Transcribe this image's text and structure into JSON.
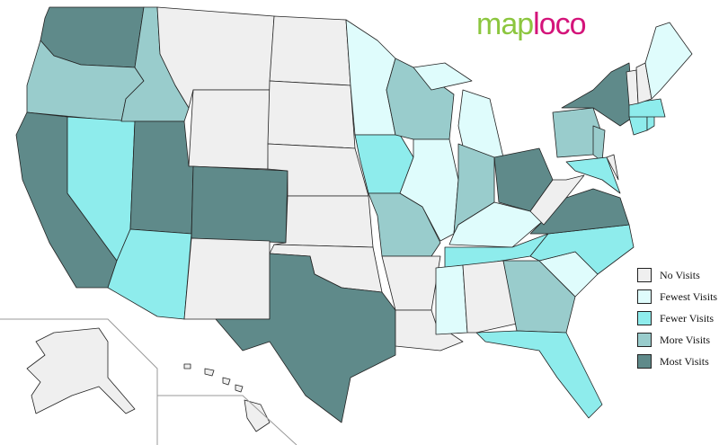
{
  "logo": {
    "part1": "map",
    "part2": "loco"
  },
  "colors": {
    "none": "#efefef",
    "fewest": "#dffcfc",
    "fewer": "#8eecec",
    "more": "#99cccc",
    "most": "#5f8a8a"
  },
  "legend": [
    {
      "key": "none",
      "label": "No Visits"
    },
    {
      "key": "fewest",
      "label": "Fewest Visits"
    },
    {
      "key": "fewer",
      "label": "Fewer Visits"
    },
    {
      "key": "more",
      "label": "More Visits"
    },
    {
      "key": "most",
      "label": "Most Visits"
    }
  ],
  "states": {
    "WA": "most",
    "OR": "more",
    "CA": "most",
    "NV": "fewer",
    "ID": "more",
    "MT": "none",
    "WY": "none",
    "UT": "most",
    "CO": "most",
    "AZ": "fewer",
    "NM": "none",
    "ND": "none",
    "SD": "none",
    "NE": "none",
    "KS": "none",
    "OK": "none",
    "TX": "most",
    "MN": "fewest",
    "IA": "fewer",
    "MO": "more",
    "AR": "none",
    "LA": "none",
    "WI": "more",
    "IL": "fewest",
    "MI": "fewest",
    "IN": "more",
    "OH": "most",
    "KY": "fewest",
    "TN": "fewer",
    "MS": "fewest",
    "AL": "none",
    "GA": "more",
    "FL": "fewer",
    "SC": "fewest",
    "NC": "fewer",
    "VA": "most",
    "WV": "none",
    "PA": "more",
    "NY": "most",
    "NJ": "more",
    "MD": "fewer",
    "DE": "none",
    "CT": "fewer",
    "RI": "fewer",
    "MA": "fewer",
    "VT": "none",
    "NH": "none",
    "ME": "fewest",
    "AK": "none",
    "HI": "none"
  }
}
